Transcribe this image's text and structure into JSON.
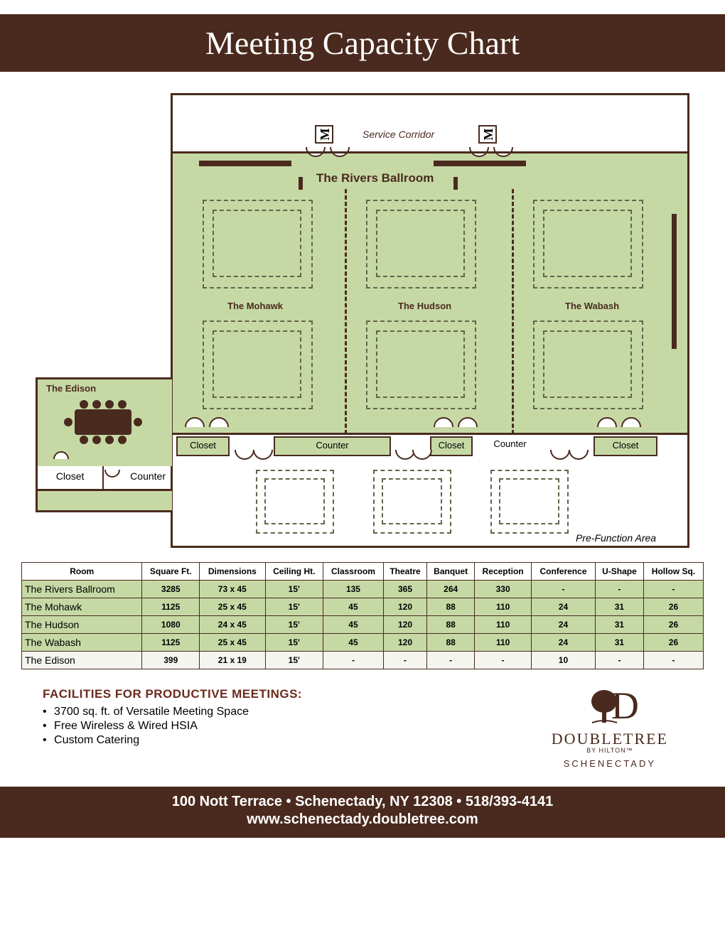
{
  "title": "Meeting Capacity Chart",
  "floorplan": {
    "service_corridor": "Service Corridor",
    "ballroom": "The Rivers Ballroom",
    "sections": {
      "mohawk": "The Mohawk",
      "hudson": "The Hudson",
      "wabash": "The Wabash"
    },
    "edison": "The Edison",
    "closet": "Closet",
    "counter": "Counter",
    "prefunction": "Pre-Function Area",
    "colors": {
      "room_fill": "#c6d9a5",
      "line": "#4a2a1e",
      "dashed": "#646449"
    }
  },
  "table": {
    "headers": [
      "Room",
      "Square Ft.",
      "Dimensions",
      "Ceiling Ht.",
      "Classroom",
      "Theatre",
      "Banquet",
      "Reception",
      "Conference",
      "U-Shape",
      "Hollow Sq."
    ],
    "rows": [
      {
        "name": "The Rivers Ballroom",
        "sqft": "3285",
        "dim": "73 x 45",
        "ht": "15'",
        "class": "135",
        "theatre": "365",
        "banquet": "264",
        "recep": "330",
        "conf": "-",
        "ushape": "-",
        "hollow": "-",
        "bg": "green"
      },
      {
        "name": "The Mohawk",
        "sqft": "1125",
        "dim": "25 x 45",
        "ht": "15'",
        "class": "45",
        "theatre": "120",
        "banquet": "88",
        "recep": "110",
        "conf": "24",
        "ushape": "31",
        "hollow": "26",
        "bg": "green"
      },
      {
        "name": "The Hudson",
        "sqft": "1080",
        "dim": "24 x 45",
        "ht": "15'",
        "class": "45",
        "theatre": "120",
        "banquet": "88",
        "recep": "110",
        "conf": "24",
        "ushape": "31",
        "hollow": "26",
        "bg": "green"
      },
      {
        "name": "The Wabash",
        "sqft": "1125",
        "dim": "25 x 45",
        "ht": "15'",
        "class": "45",
        "theatre": "120",
        "banquet": "88",
        "recep": "110",
        "conf": "24",
        "ushape": "31",
        "hollow": "26",
        "bg": "green"
      },
      {
        "name": "The Edison",
        "sqft": "399",
        "dim": "21 x 19",
        "ht": "15'",
        "class": "-",
        "theatre": "-",
        "banquet": "-",
        "recep": "-",
        "conf": "10",
        "ushape": "-",
        "hollow": "-",
        "bg": "plain"
      }
    ]
  },
  "facilities": {
    "heading": "FACILITIES FOR PRODUCTIVE MEETINGS:",
    "items": [
      "3700 sq. ft. of Versatile Meeting Space",
      "Free Wireless & Wired HSIA",
      "Custom Catering"
    ]
  },
  "logo": {
    "name": "DOUBLETREE",
    "byline": "BY HILTON™",
    "location": "SCHENECTADY"
  },
  "footer": {
    "address": "100 Nott Terrace • Schenectady, NY 12308 • 518/393-4141",
    "url": "www.schenectady.doubletree.com"
  }
}
